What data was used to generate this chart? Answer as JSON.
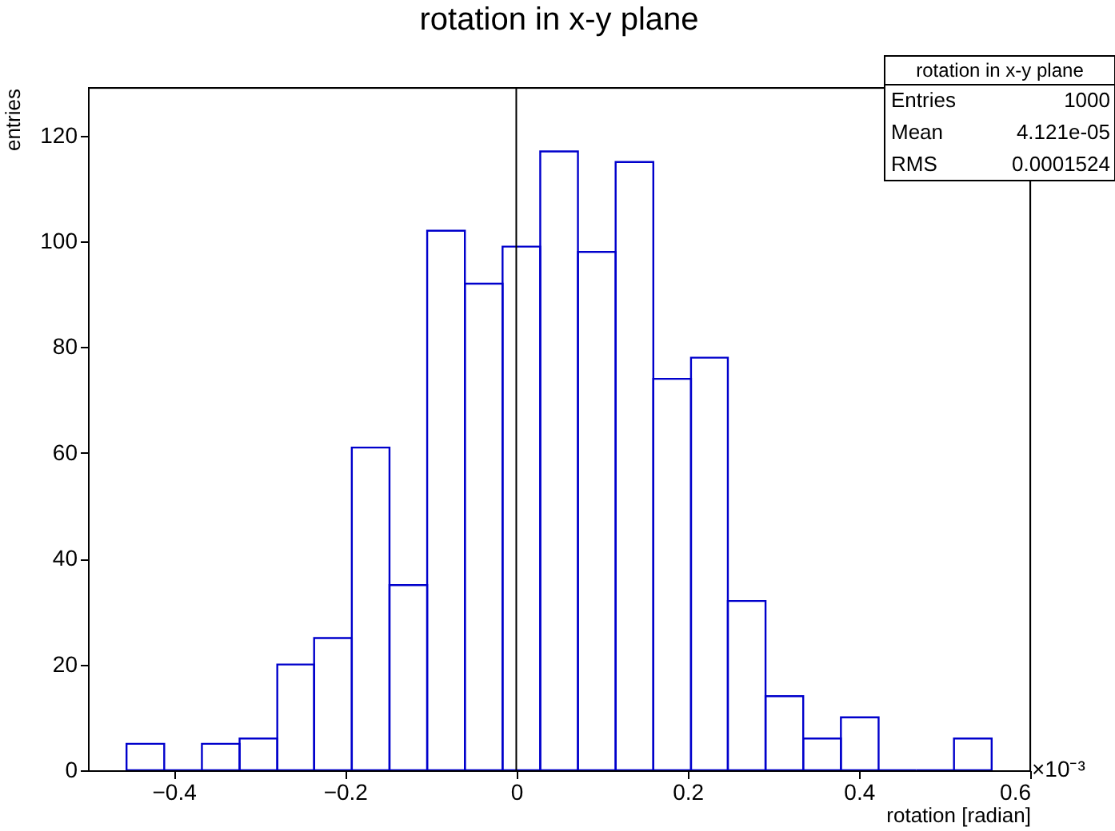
{
  "chart_data": {
    "type": "histogram",
    "title": "rotation in x-y plane",
    "xlabel": "rotation [radian]",
    "ylabel": "entries",
    "bins": [
      -0.455,
      -0.411,
      -0.367,
      -0.323,
      -0.279,
      -0.236,
      -0.192,
      -0.148,
      -0.104,
      -0.06,
      -0.016,
      0.028,
      0.072,
      0.116,
      0.16,
      0.204,
      0.247,
      0.291,
      0.335,
      0.379,
      0.423,
      0.467,
      0.511,
      0.555
    ],
    "values": [
      5,
      0,
      5,
      6,
      20,
      25,
      61,
      35,
      102,
      92,
      99,
      117,
      98,
      115,
      74,
      78,
      32,
      14,
      6,
      10,
      0,
      0,
      6
    ],
    "color": "#0000cc",
    "xlim": [
      -0.5,
      0.6
    ],
    "xticks": [
      -0.4,
      -0.2,
      {
        "value": 0,
        "label": "0"
      },
      0.2,
      0.4,
      0.6
    ],
    "ylim": [
      0,
      129
    ],
    "yticks": [
      0,
      20,
      40,
      60,
      80,
      100,
      120
    ],
    "grid": false,
    "ref_lines": [
      {
        "axis": "x",
        "value": 0,
        "color": "#000000"
      }
    ],
    "annotations": [
      "rotation in x-y plane",
      "Entries",
      "1000",
      "Mean",
      "4.121e-05",
      "RMS",
      "0.0001524",
      "×10⁻³"
    ]
  }
}
